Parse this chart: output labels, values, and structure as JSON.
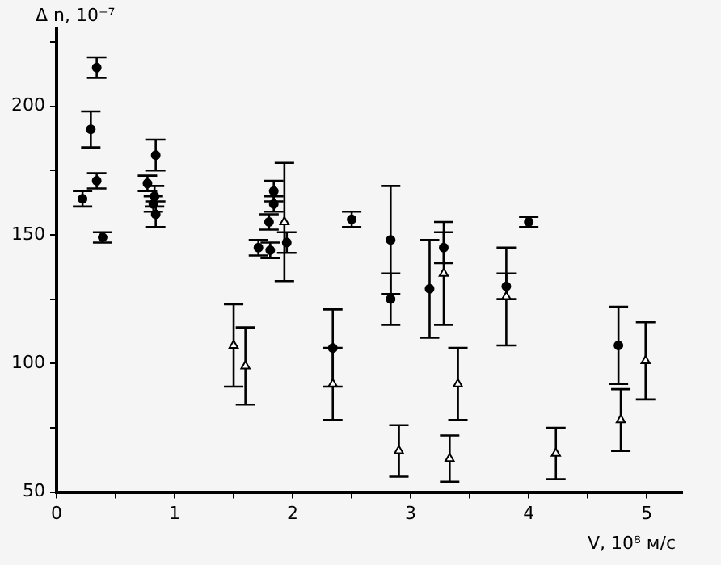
{
  "chart_data": {
    "type": "scatter",
    "xlabel": "V, 10⁸ м/с",
    "ylabel": "Δ n, 10⁻⁷",
    "xlim": [
      0,
      5.3
    ],
    "ylim": [
      50,
      230
    ],
    "xticks": [
      0,
      {
        "value": 0.5,
        "label": null
      },
      1,
      {
        "value": 1.5,
        "label": null
      },
      2,
      {
        "value": 2.5,
        "label": null
      },
      3,
      {
        "value": 3.5,
        "label": null
      },
      4,
      {
        "value": 4.5,
        "label": null
      },
      5
    ],
    "yticks": [
      50,
      {
        "value": 75,
        "label": null
      },
      100,
      {
        "value": 125,
        "label": null
      },
      150,
      {
        "value": 175,
        "label": null
      },
      200,
      {
        "value": 225,
        "label": null
      }
    ],
    "grid": false,
    "legend": false,
    "series": [
      {
        "color": "#000000",
        "marker": "circle",
        "x": [
          0.34,
          0.29,
          0.34,
          0.22,
          0.39,
          0.84,
          0.77,
          0.83,
          0.82,
          0.84,
          1.84,
          1.84,
          1.8,
          1.71,
          1.81,
          1.95,
          2.5,
          2.34,
          2.83,
          2.83,
          3.16,
          3.28,
          4.0,
          3.81,
          4.76
        ],
        "values": [
          215,
          191,
          171,
          164,
          149,
          181,
          170,
          165,
          162,
          158,
          167,
          162,
          155,
          145,
          144,
          147,
          156,
          106,
          148,
          125,
          129,
          145,
          155,
          130,
          107
        ],
        "errors": [
          4,
          7,
          3,
          3,
          2,
          6,
          3,
          4,
          3,
          5,
          4,
          3,
          3,
          3,
          3,
          4,
          3,
          15,
          21,
          10,
          19,
          6,
          2,
          5,
          15
        ]
      },
      {
        "color": "#000000",
        "marker": "triangle",
        "x": [
          1.93,
          1.5,
          1.6,
          2.34,
          2.9,
          3.28,
          3.4,
          3.33,
          3.81,
          4.23,
          4.78,
          4.99
        ],
        "values": [
          155,
          107,
          99,
          92,
          66,
          135,
          92,
          63,
          126,
          65,
          78,
          101
        ],
        "errors": [
          23,
          16,
          15,
          14,
          10,
          20,
          14,
          9,
          19,
          10,
          12,
          15
        ]
      }
    ]
  }
}
